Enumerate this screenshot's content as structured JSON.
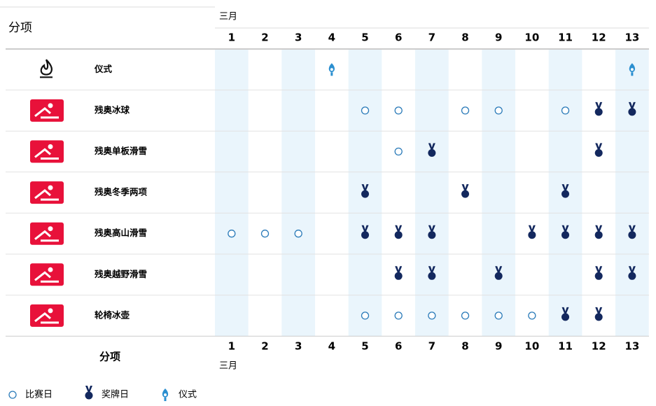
{
  "header": {
    "title": "分项",
    "month": "三月"
  },
  "days": [
    1,
    2,
    3,
    4,
    5,
    6,
    7,
    8,
    9,
    10,
    11,
    12,
    13
  ],
  "rows": [
    {
      "name": "仪式",
      "ceremony_days": [
        4,
        13
      ]
    },
    {
      "name": "残奥冰球",
      "competition_days": [
        5,
        6,
        8,
        9,
        11
      ],
      "medal_days": [
        12,
        13
      ]
    },
    {
      "name": "残奥单板滑雪",
      "competition_days": [
        6
      ],
      "medal_days": [
        7,
        12
      ]
    },
    {
      "name": "残奥冬季两项",
      "medal_days": [
        5,
        8,
        11
      ]
    },
    {
      "name": "残奥高山滑雪",
      "competition_days": [
        1,
        2,
        3
      ],
      "medal_days": [
        5,
        6,
        7,
        10,
        11,
        12,
        13
      ]
    },
    {
      "name": "残奥越野滑雪",
      "medal_days": [
        6,
        7,
        9,
        12,
        13
      ]
    },
    {
      "name": "轮椅冰壶",
      "competition_days": [
        5,
        6,
        7,
        8,
        9,
        10
      ],
      "medal_days": [
        11,
        12
      ]
    }
  ],
  "footer": {
    "title": "分项",
    "month": "三月"
  },
  "legend": {
    "competition": "比赛日",
    "medal": "奖牌日",
    "ceremony": "仪式"
  }
}
